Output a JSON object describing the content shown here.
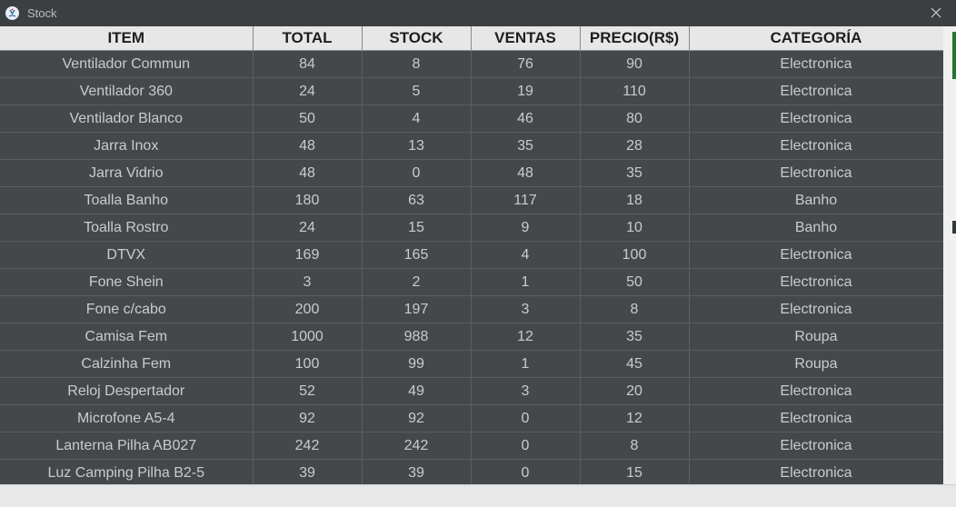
{
  "window": {
    "title": "Stock",
    "app_icon": "java-app-icon",
    "close_icon": "close-icon"
  },
  "table": {
    "columns": [
      "ITEM",
      "TOTAL",
      "STOCK",
      "VENTAS",
      "PRECIO(R$)",
      "CATEGORÍA"
    ],
    "rows": [
      [
        "Ventilador Commun",
        "84",
        "8",
        "76",
        "90",
        "Electronica"
      ],
      [
        "Ventilador 360",
        "24",
        "5",
        "19",
        "110",
        "Electronica"
      ],
      [
        "Ventilador Blanco",
        "50",
        "4",
        "46",
        "80",
        "Electronica"
      ],
      [
        "Jarra Inox",
        "48",
        "13",
        "35",
        "28",
        "Electronica"
      ],
      [
        "Jarra Vidrio",
        "48",
        "0",
        "48",
        "35",
        "Electronica"
      ],
      [
        "Toalla Banho",
        "180",
        "63",
        "117",
        "18",
        "Banho"
      ],
      [
        "Toalla Rostro",
        "24",
        "15",
        "9",
        "10",
        "Banho"
      ],
      [
        "DTVX",
        "169",
        "165",
        "4",
        "100",
        "Electronica"
      ],
      [
        "Fone Shein",
        "3",
        "2",
        "1",
        "50",
        "Electronica"
      ],
      [
        "Fone c/cabo",
        "200",
        "197",
        "3",
        "8",
        "Electronica"
      ],
      [
        "Camisa Fem",
        "1000",
        "988",
        "12",
        "35",
        "Roupa"
      ],
      [
        "Calzinha Fem",
        "100",
        "99",
        "1",
        "45",
        "Roupa"
      ],
      [
        "Reloj Despertador",
        "52",
        "49",
        "3",
        "20",
        "Electronica"
      ],
      [
        "Microfone A5-4",
        "92",
        "92",
        "0",
        "12",
        "Electronica"
      ],
      [
        "Lanterna Pilha AB027",
        "242",
        "242",
        "0",
        "8",
        "Electronica"
      ],
      [
        "Luz Camping Pilha B2-5",
        "39",
        "39",
        "0",
        "15",
        "Electronica"
      ]
    ]
  },
  "colors": {
    "titlebar_bg": "#3c3f41",
    "table_bg": "#45484a",
    "header_bg": "#e7e7e7",
    "cell_text": "#c9cbcd",
    "grid_line": "#5b5e60"
  }
}
